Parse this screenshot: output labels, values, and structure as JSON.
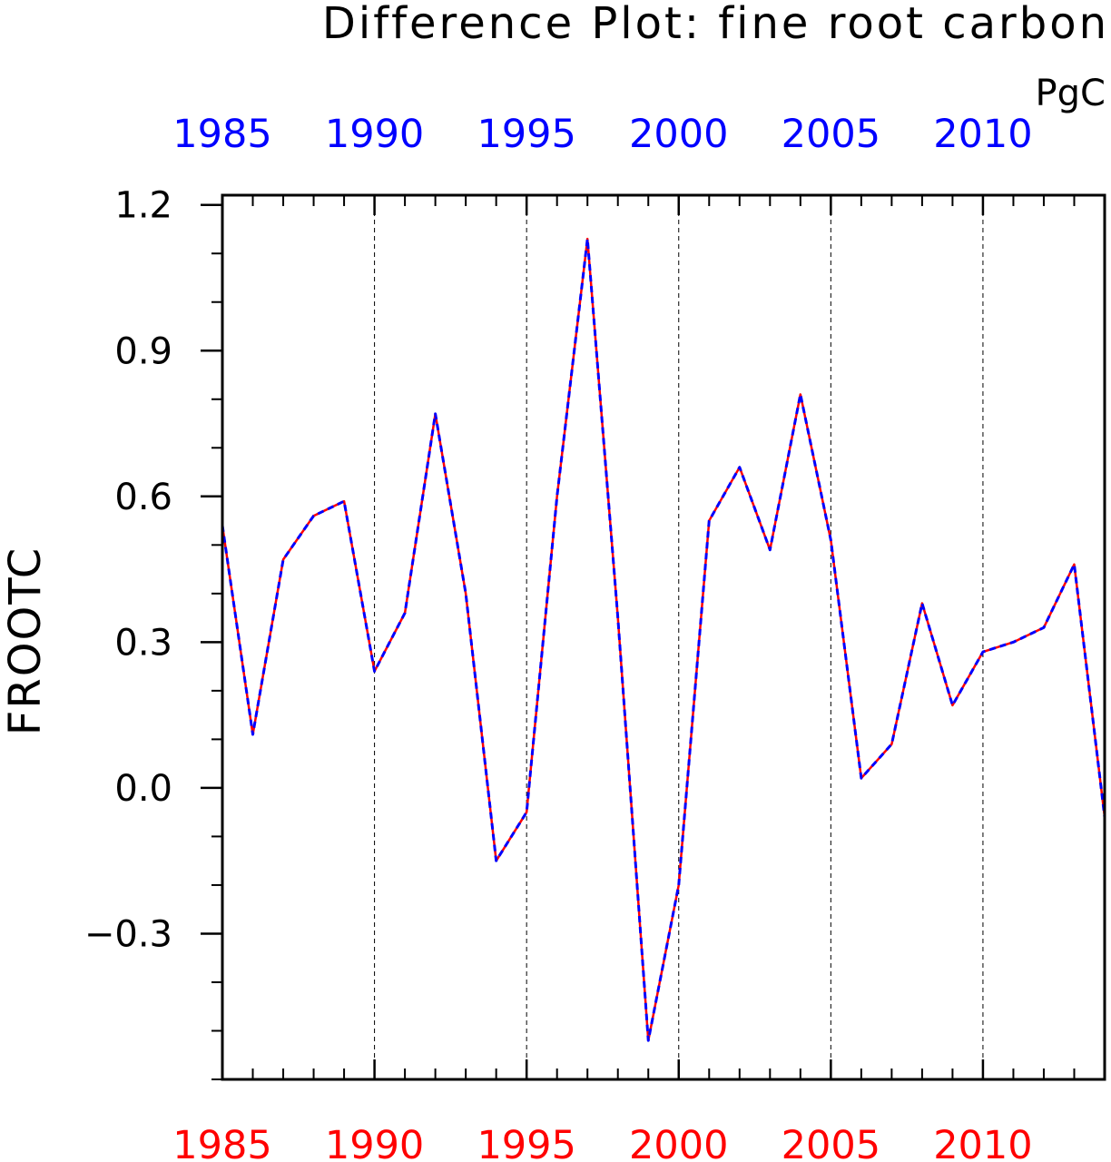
{
  "chart_data": {
    "type": "line",
    "title": "Difference Plot: fine root carbon",
    "units": "PgC",
    "ylabel": "FROOTC",
    "xlabel": "",
    "xlim": [
      1985,
      2014
    ],
    "ylim": [
      -0.6,
      1.22
    ],
    "grid": "vertical dashed lines at major x ticks",
    "x_ticks": [
      "1985",
      "1990",
      "1995",
      "2000",
      "2005",
      "2010"
    ],
    "x_tick_values": [
      1985,
      1990,
      1995,
      2000,
      2005,
      2010
    ],
    "y_ticks": [
      "1.2",
      "0.9",
      "0.6",
      "0.3",
      "0.0",
      "−0.3"
    ],
    "y_tick_values": [
      1.2,
      0.9,
      0.6,
      0.3,
      0.0,
      -0.3
    ],
    "x": [
      1985,
      1986,
      1987,
      1988,
      1989,
      1990,
      1991,
      1992,
      1993,
      1994,
      1995,
      1996,
      1997,
      1998,
      1999,
      2000,
      2001,
      2002,
      2003,
      2004,
      2005,
      2006,
      2007,
      2008,
      2009,
      2010,
      2011,
      2012,
      2013,
      2014
    ],
    "series": [
      {
        "color": "#ff0000",
        "style": "solid",
        "values": [
          0.54,
          0.11,
          0.47,
          0.56,
          0.59,
          0.24,
          0.36,
          0.77,
          0.4,
          -0.15,
          -0.05,
          0.6,
          1.13,
          0.35,
          -0.52,
          -0.2,
          0.55,
          0.66,
          0.49,
          0.81,
          0.51,
          0.02,
          0.09,
          0.38,
          0.17,
          0.28,
          0.3,
          0.33,
          0.46,
          -0.06
        ]
      },
      {
        "color": "#0000ff",
        "style": "dashed",
        "values": [
          0.54,
          0.11,
          0.47,
          0.56,
          0.59,
          0.24,
          0.36,
          0.77,
          0.4,
          -0.15,
          -0.05,
          0.6,
          1.13,
          0.35,
          -0.52,
          -0.2,
          0.55,
          0.66,
          0.49,
          0.81,
          0.51,
          0.02,
          0.09,
          0.38,
          0.17,
          0.28,
          0.3,
          0.33,
          0.46,
          -0.06
        ]
      }
    ],
    "colors": {
      "top_axis_labels": "#0000ff",
      "bottom_axis_labels": "#ff0000",
      "frame": "#000000"
    }
  }
}
